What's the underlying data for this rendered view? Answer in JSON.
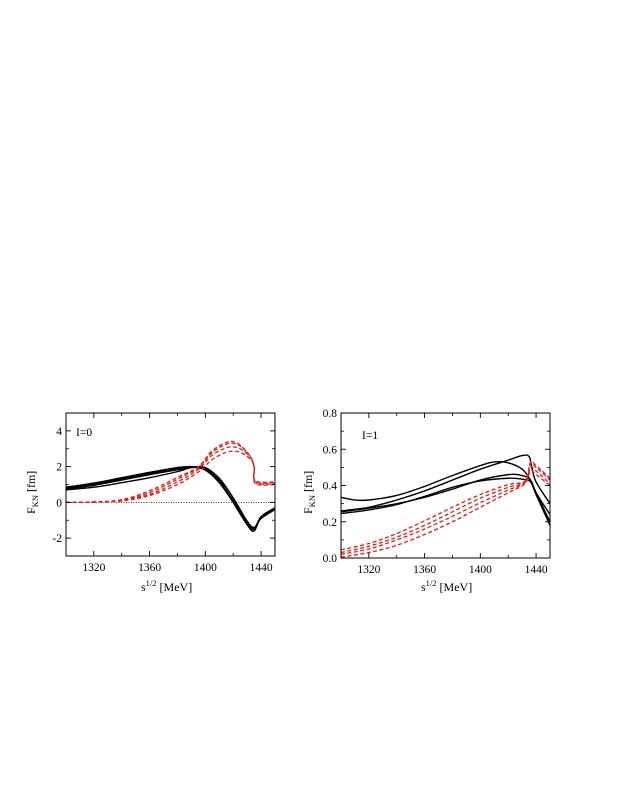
{
  "chart_data": [
    {
      "type": "line",
      "panel_label": "I=0",
      "ylabel": "F",
      "ylabel_sub": "KN",
      "ylabel_unit": "[fm]",
      "xlabel": "s",
      "xlabel_sup": "1/2",
      "xlabel_unit": "[MeV]",
      "xlim": [
        1300,
        1450
      ],
      "ylim": [
        -3,
        5
      ],
      "xticks": [
        1320,
        1360,
        1400,
        1440
      ],
      "yticks": [
        -2,
        0,
        2,
        4
      ],
      "reference_line_y": 0,
      "series": [
        {
          "style": "solid",
          "color": "#000000",
          "x": [
            1300,
            1320,
            1340,
            1360,
            1380,
            1390,
            1400,
            1410,
            1420,
            1430,
            1435,
            1440,
            1450
          ],
          "y": [
            0.85,
            1.08,
            1.38,
            1.68,
            1.95,
            2.0,
            1.8,
            1.1,
            0.0,
            -1.2,
            -1.5,
            -0.8,
            -0.3
          ]
        },
        {
          "style": "solid",
          "color": "#000000",
          "x": [
            1300,
            1320,
            1340,
            1360,
            1380,
            1390,
            1400,
            1410,
            1420,
            1430,
            1435,
            1440,
            1450
          ],
          "y": [
            0.8,
            1.02,
            1.32,
            1.62,
            1.9,
            1.98,
            1.85,
            1.2,
            0.1,
            -1.15,
            -1.45,
            -0.85,
            -0.35
          ]
        },
        {
          "style": "solid",
          "color": "#000000",
          "x": [
            1300,
            1320,
            1340,
            1360,
            1380,
            1390,
            1400,
            1410,
            1420,
            1430,
            1435,
            1440,
            1450
          ],
          "y": [
            0.75,
            0.95,
            1.25,
            1.55,
            1.82,
            1.95,
            1.9,
            1.35,
            0.25,
            -1.05,
            -1.4,
            -0.9,
            -0.4
          ]
        },
        {
          "style": "solid",
          "color": "#000000",
          "x": [
            1300,
            1320,
            1340,
            1360,
            1380,
            1390,
            1400,
            1410,
            1420,
            1430,
            1435,
            1440,
            1450
          ],
          "y": [
            0.7,
            0.85,
            1.1,
            1.38,
            1.72,
            1.95,
            1.95,
            1.3,
            0.0,
            -1.25,
            -1.6,
            -0.85,
            -0.35
          ]
        },
        {
          "style": "dashed",
          "color": "#e0201b",
          "x": [
            1300,
            1320,
            1340,
            1360,
            1380,
            1395,
            1405,
            1415,
            1420,
            1425,
            1432,
            1435,
            1436,
            1450
          ],
          "y": [
            0.0,
            0.03,
            0.15,
            0.65,
            1.4,
            2.0,
            2.9,
            3.35,
            3.4,
            3.2,
            2.6,
            2.0,
            1.2,
            1.15
          ]
        },
        {
          "style": "dashed",
          "color": "#e0201b",
          "x": [
            1300,
            1320,
            1340,
            1360,
            1380,
            1395,
            1405,
            1415,
            1420,
            1425,
            1432,
            1435,
            1436,
            1450
          ],
          "y": [
            0.0,
            0.02,
            0.12,
            0.55,
            1.3,
            1.95,
            2.8,
            3.25,
            3.3,
            3.15,
            2.6,
            2.0,
            1.15,
            1.1
          ]
        },
        {
          "style": "dashed",
          "color": "#e0201b",
          "x": [
            1300,
            1320,
            1340,
            1360,
            1380,
            1395,
            1405,
            1415,
            1420,
            1425,
            1432,
            1435,
            1436,
            1450
          ],
          "y": [
            0.0,
            0.02,
            0.1,
            0.45,
            1.15,
            1.85,
            2.65,
            3.05,
            3.1,
            3.0,
            2.55,
            2.0,
            1.1,
            1.05
          ]
        },
        {
          "style": "dashed",
          "color": "#e0201b",
          "x": [
            1300,
            1320,
            1340,
            1360,
            1380,
            1395,
            1405,
            1415,
            1420,
            1425,
            1432,
            1435,
            1436,
            1450
          ],
          "y": [
            0.0,
            0.01,
            0.08,
            0.38,
            1.0,
            1.7,
            2.4,
            2.8,
            2.85,
            2.8,
            2.45,
            2.0,
            1.05,
            1.0
          ]
        }
      ]
    },
    {
      "type": "line",
      "panel_label": "I=1",
      "ylabel": "F",
      "ylabel_sub": "KN",
      "ylabel_unit": "[fm]",
      "xlabel": "s",
      "xlabel_sup": "1/2",
      "xlabel_unit": "[MeV]",
      "xlim": [
        1300,
        1450
      ],
      "ylim": [
        0.0,
        0.8
      ],
      "xticks": [
        1320,
        1360,
        1400,
        1440
      ],
      "yticks": [
        0.0,
        0.2,
        0.4,
        0.6,
        0.8
      ],
      "series": [
        {
          "style": "solid",
          "color": "#000000",
          "x": [
            1300,
            1310,
            1320,
            1340,
            1360,
            1380,
            1400,
            1410,
            1420,
            1430,
            1436,
            1440,
            1450
          ],
          "y": [
            0.335,
            0.32,
            0.32,
            0.345,
            0.395,
            0.455,
            0.51,
            0.53,
            0.525,
            0.49,
            0.43,
            0.36,
            0.24
          ]
        },
        {
          "style": "solid",
          "color": "#000000",
          "x": [
            1300,
            1320,
            1340,
            1360,
            1380,
            1400,
            1420,
            1430,
            1435,
            1437,
            1440,
            1450
          ],
          "y": [
            0.26,
            0.28,
            0.32,
            0.37,
            0.43,
            0.49,
            0.54,
            0.565,
            0.56,
            0.5,
            0.42,
            0.3
          ]
        },
        {
          "style": "solid",
          "color": "#000000",
          "x": [
            1300,
            1320,
            1340,
            1360,
            1380,
            1400,
            1420,
            1430,
            1436,
            1440,
            1450
          ],
          "y": [
            0.255,
            0.275,
            0.3,
            0.335,
            0.38,
            0.43,
            0.46,
            0.455,
            0.43,
            0.36,
            0.2
          ]
        },
        {
          "style": "solid",
          "color": "#000000",
          "x": [
            1300,
            1320,
            1340,
            1360,
            1380,
            1400,
            1420,
            1430,
            1436,
            1440,
            1450
          ],
          "y": [
            0.245,
            0.265,
            0.295,
            0.34,
            0.39,
            0.425,
            0.44,
            0.435,
            0.42,
            0.35,
            0.18
          ]
        },
        {
          "style": "dashed",
          "color": "#e0201b",
          "x": [
            1300,
            1320,
            1340,
            1360,
            1380,
            1400,
            1420,
            1432,
            1436,
            1440,
            1450
          ],
          "y": [
            0.005,
            0.03,
            0.07,
            0.13,
            0.2,
            0.28,
            0.36,
            0.41,
            0.48,
            0.46,
            0.4
          ]
        },
        {
          "style": "dashed",
          "color": "#e0201b",
          "x": [
            1300,
            1320,
            1340,
            1360,
            1380,
            1400,
            1420,
            1432,
            1436,
            1440,
            1450
          ],
          "y": [
            0.02,
            0.05,
            0.1,
            0.16,
            0.23,
            0.305,
            0.375,
            0.415,
            0.5,
            0.48,
            0.41
          ]
        },
        {
          "style": "dashed",
          "color": "#e0201b",
          "x": [
            1300,
            1320,
            1340,
            1360,
            1380,
            1400,
            1420,
            1432,
            1436,
            1440,
            1450
          ],
          "y": [
            0.03,
            0.065,
            0.115,
            0.18,
            0.255,
            0.33,
            0.39,
            0.42,
            0.52,
            0.5,
            0.43
          ]
        },
        {
          "style": "dashed",
          "color": "#e0201b",
          "x": [
            1300,
            1320,
            1340,
            1360,
            1380,
            1400,
            1420,
            1432,
            1436,
            1440,
            1450
          ],
          "y": [
            0.045,
            0.08,
            0.135,
            0.205,
            0.28,
            0.35,
            0.405,
            0.425,
            0.53,
            0.51,
            0.44
          ]
        }
      ]
    }
  ]
}
